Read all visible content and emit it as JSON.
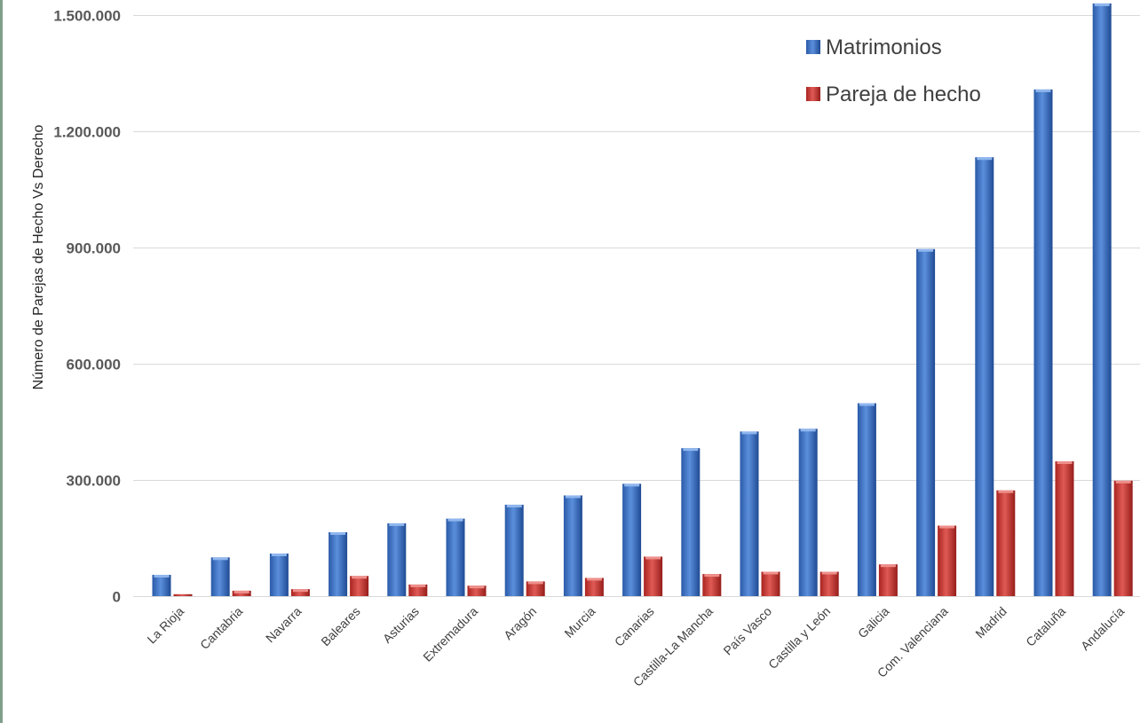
{
  "chart_data": {
    "type": "bar",
    "ylabel": "Número de Parejas de Hecho Vs Derecho",
    "xlabel": "",
    "ylim": [
      0,
      1500000
    ],
    "yticks": [
      0,
      300000,
      600000,
      900000,
      1200000,
      1500000
    ],
    "ytick_labels": [
      "0",
      "300.000",
      "600.000",
      "900.000",
      "1.200.000",
      "1.500.000"
    ],
    "grid": true,
    "legend_position": "top-right",
    "categories": [
      "La Rioja",
      "Cantabria",
      "Navarra",
      "Baleares",
      "Asturias",
      "Extremadura",
      "Aragón",
      "Murcia",
      "Canarias",
      "Castilla-La Mancha",
      "País Vasco",
      "Castilla y León",
      "Galicia",
      "Com. Valenciana",
      "Madrid",
      "Cataluña",
      "Andalucía"
    ],
    "series": [
      {
        "name": "Matrimonios",
        "color": "#3a6fc4",
        "values": [
          55000,
          100000,
          110000,
          165000,
          188000,
          200000,
          236000,
          260000,
          290000,
          382000,
          425000,
          432000,
          498000,
          896000,
          1133000,
          1308000,
          1530000
        ]
      },
      {
        "name": "Pareja de hecho",
        "color": "#c9302c",
        "values": [
          5000,
          14000,
          18000,
          52000,
          30000,
          27000,
          38000,
          47000,
          102000,
          57000,
          63000,
          63000,
          82000,
          182000,
          273000,
          348000,
          298000
        ]
      }
    ]
  }
}
